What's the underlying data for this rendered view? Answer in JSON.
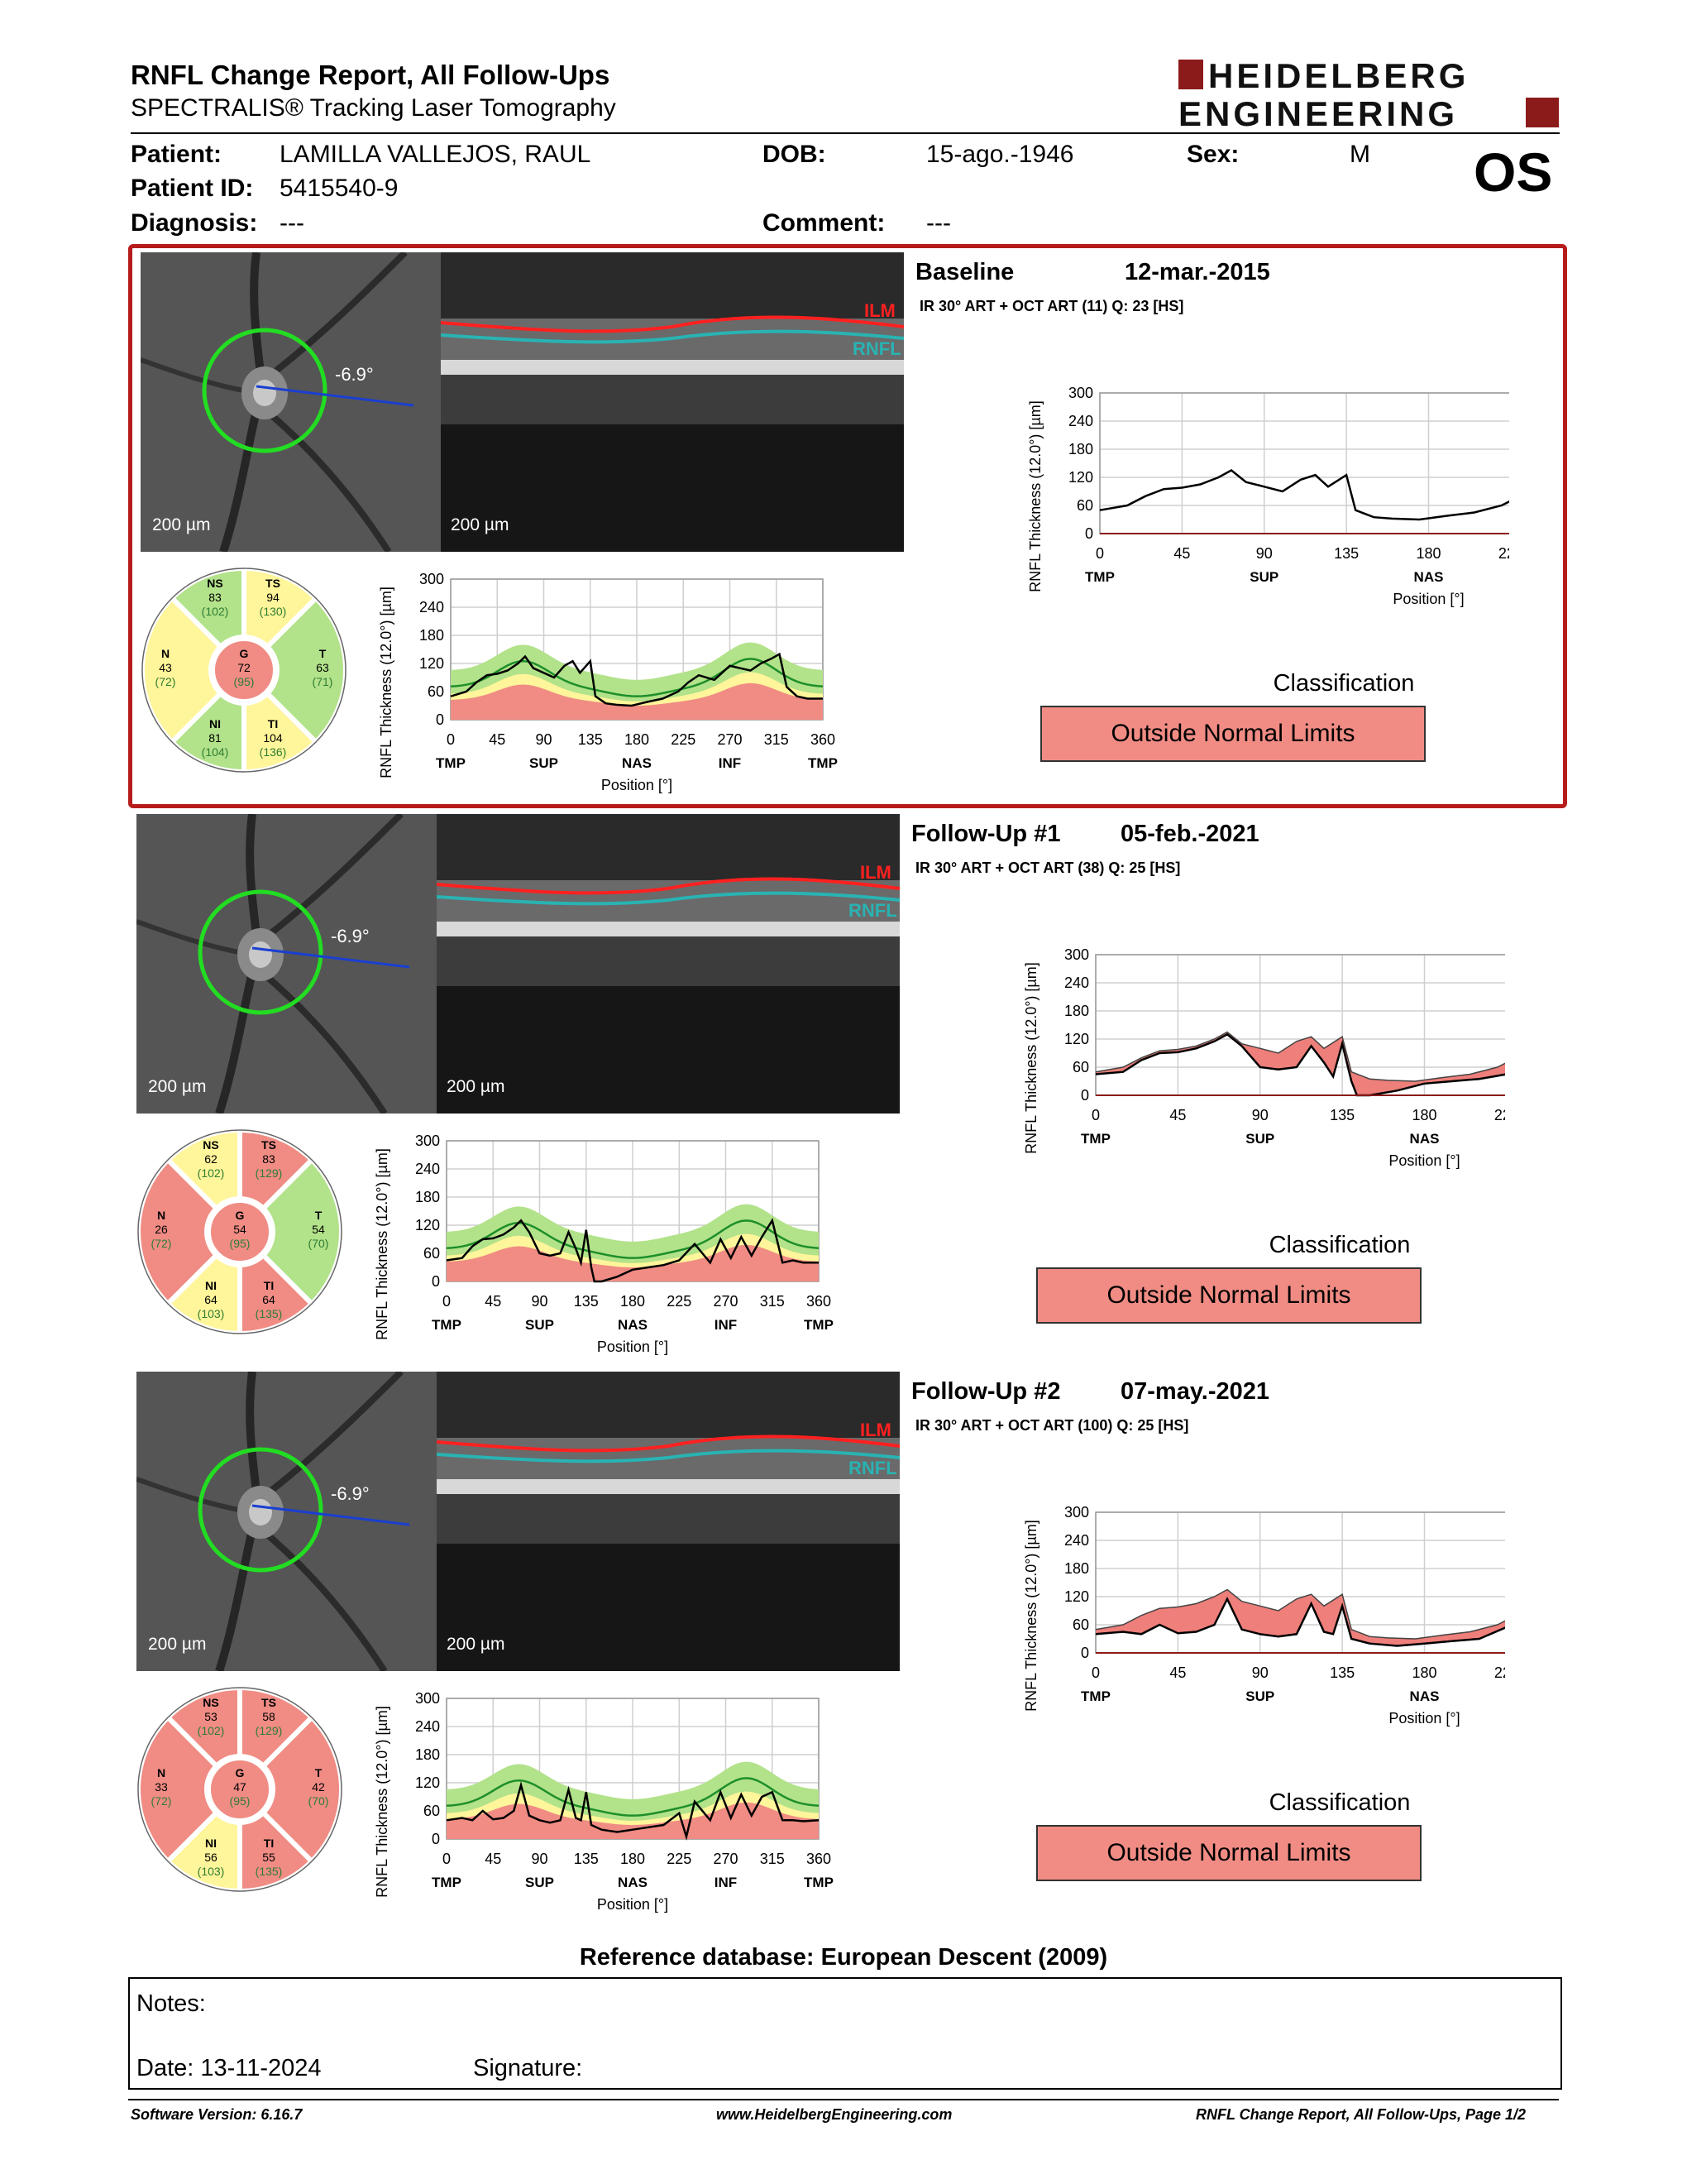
{
  "header": {
    "title": "RNFL Change Report, All Follow-Ups",
    "subtitle": "SPECTRALIS® Tracking Laser Tomography",
    "logo_line1": "HEIDELBERG",
    "logo_line2": "ENGINEERING"
  },
  "patient": {
    "patient_label": "Patient:",
    "patient_value": "LAMILLA VALLEJOS, RAUL",
    "id_label": "Patient ID:",
    "id_value": "5415540-9",
    "diagnosis_label": "Diagnosis:",
    "diagnosis_value": "---",
    "dob_label": "DOB:",
    "dob_value": "15-ago.-1946",
    "comment_label": "Comment:",
    "comment_value": "---",
    "sex_label": "Sex:",
    "sex_value": "M",
    "eye": "OS"
  },
  "visits": [
    {
      "title": "Baseline",
      "date": "12-mar.-2015",
      "acq": "IR 30° ART + OCT ART (11) Q: 23 [HS]",
      "angle": "-6.9°",
      "scale": "200 µm",
      "sectors": {
        "NS": [
          "83",
          "(102)"
        ],
        "TS": [
          "94",
          "(130)"
        ],
        "N": [
          "43",
          "(72)"
        ],
        "G": [
          "72",
          "(95)"
        ],
        "T": [
          "63",
          "(71)"
        ],
        "NI": [
          "81",
          "(104)"
        ],
        "TI": [
          "104",
          "(136)"
        ]
      },
      "sector_colors": {
        "NS": "#b2e28a",
        "TS": "#fff59a",
        "N": "#fff59a",
        "G": "#f08c84",
        "T": "#b2e28a",
        "NI": "#b2e28a",
        "TI": "#fff59a"
      },
      "classification_label": "Classification",
      "classification": "Outside Normal Limits"
    },
    {
      "title": "Follow-Up #1",
      "date": "05-feb.-2021",
      "acq": "IR 30° ART + OCT ART (38) Q: 25 [HS]",
      "angle": "-6.9°",
      "scale": "200 µm",
      "sectors": {
        "NS": [
          "62",
          "(102)"
        ],
        "TS": [
          "83",
          "(129)"
        ],
        "N": [
          "26",
          "(72)"
        ],
        "G": [
          "54",
          "(95)"
        ],
        "T": [
          "54",
          "(70)"
        ],
        "NI": [
          "64",
          "(103)"
        ],
        "TI": [
          "64",
          "(135)"
        ]
      },
      "sector_colors": {
        "NS": "#fff59a",
        "TS": "#f08c84",
        "N": "#f08c84",
        "G": "#f08c84",
        "T": "#b2e28a",
        "NI": "#fff59a",
        "TI": "#f08c84"
      },
      "classification_label": "Classification",
      "classification": "Outside Normal Limits"
    },
    {
      "title": "Follow-Up #2",
      "date": "07-may.-2021",
      "acq": "IR 30° ART + OCT ART (100) Q: 25 [HS]",
      "angle": "-6.9°",
      "scale": "200 µm",
      "sectors": {
        "NS": [
          "53",
          "(102)"
        ],
        "TS": [
          "58",
          "(129)"
        ],
        "N": [
          "33",
          "(72)"
        ],
        "G": [
          "47",
          "(95)"
        ],
        "T": [
          "42",
          "(70)"
        ],
        "NI": [
          "56",
          "(103)"
        ],
        "TI": [
          "55",
          "(135)"
        ]
      },
      "sector_colors": {
        "NS": "#f08c84",
        "TS": "#f08c84",
        "N": "#f08c84",
        "G": "#f08c84",
        "T": "#f08c84",
        "NI": "#fff59a",
        "TI": "#f08c84"
      },
      "classification_label": "Classification",
      "classification": "Outside Normal Limits"
    }
  ],
  "chart_data": [
    {
      "type": "line",
      "title": "Baseline RNFL thickness profile",
      "xlabel": "Position [°]",
      "ylabel": "RNFL Thickness (12.0°) [µm]",
      "xlim": [
        0,
        360
      ],
      "ylim": [
        0,
        300
      ],
      "x_ticks": [
        0,
        45,
        90,
        135,
        180,
        225,
        270,
        315,
        360
      ],
      "y_ticks": [
        0,
        60,
        120,
        180,
        240,
        300
      ],
      "region_labels": [
        "TMP",
        "SUP",
        "NAS",
        "INF",
        "TMP"
      ],
      "series": [
        {
          "name": "Baseline",
          "x": [
            0,
            15,
            25,
            35,
            45,
            55,
            65,
            72,
            80,
            90,
            100,
            110,
            118,
            125,
            135,
            140,
            150,
            160,
            175,
            190,
            205,
            220,
            230,
            240,
            255,
            270,
            280,
            290,
            300,
            310,
            318,
            325,
            335,
            345,
            360
          ],
          "y": [
            50,
            60,
            80,
            95,
            98,
            105,
            120,
            135,
            110,
            100,
            90,
            115,
            125,
            100,
            125,
            50,
            35,
            32,
            30,
            38,
            45,
            60,
            80,
            95,
            85,
            115,
            110,
            105,
            120,
            130,
            140,
            70,
            50,
            45,
            45
          ]
        }
      ]
    },
    {
      "type": "line",
      "title": "Follow-Up #1 RNFL thickness profile",
      "xlabel": "Position [°]",
      "ylabel": "RNFL Thickness (12.0°) [µm]",
      "xlim": [
        0,
        360
      ],
      "ylim": [
        0,
        300
      ],
      "x_ticks": [
        0,
        45,
        90,
        135,
        180,
        225,
        270,
        315,
        360
      ],
      "y_ticks": [
        0,
        60,
        120,
        180,
        240,
        300
      ],
      "region_labels": [
        "TMP",
        "SUP",
        "NAS",
        "INF",
        "TMP"
      ],
      "series": [
        {
          "name": "Baseline",
          "x": [
            0,
            15,
            25,
            35,
            45,
            55,
            65,
            72,
            80,
            90,
            100,
            110,
            118,
            125,
            135,
            140,
            150,
            160,
            175,
            190,
            205,
            220,
            230,
            240,
            255,
            270,
            280,
            290,
            300,
            310,
            318,
            325,
            335,
            345,
            360
          ],
          "y": [
            50,
            60,
            80,
            95,
            98,
            105,
            120,
            135,
            110,
            100,
            90,
            115,
            125,
            100,
            125,
            50,
            35,
            32,
            30,
            38,
            45,
            60,
            80,
            95,
            85,
            115,
            110,
            105,
            120,
            130,
            140,
            70,
            50,
            45,
            45
          ]
        },
        {
          "name": "Follow-Up #1",
          "x": [
            0,
            15,
            25,
            35,
            45,
            55,
            65,
            72,
            80,
            90,
            100,
            110,
            118,
            125,
            130,
            135,
            140,
            143,
            150,
            165,
            180,
            195,
            210,
            225,
            240,
            255,
            265,
            275,
            285,
            295,
            305,
            315,
            325,
            335,
            345,
            360
          ],
          "y": [
            45,
            50,
            75,
            90,
            92,
            100,
            115,
            130,
            105,
            60,
            55,
            60,
            105,
            70,
            40,
            110,
            30,
            0,
            0,
            10,
            25,
            30,
            35,
            45,
            80,
            40,
            90,
            50,
            95,
            55,
            95,
            130,
            40,
            45,
            40,
            40
          ]
        }
      ]
    },
    {
      "type": "line",
      "title": "Follow-Up #2 RNFL thickness profile",
      "xlabel": "Position [°]",
      "ylabel": "RNFL Thickness (12.0°) [µm]",
      "xlim": [
        0,
        360
      ],
      "ylim": [
        0,
        300
      ],
      "x_ticks": [
        0,
        45,
        90,
        135,
        180,
        225,
        270,
        315,
        360
      ],
      "y_ticks": [
        0,
        60,
        120,
        180,
        240,
        300
      ],
      "region_labels": [
        "TMP",
        "SUP",
        "NAS",
        "INF",
        "TMP"
      ],
      "series": [
        {
          "name": "Baseline",
          "x": [
            0,
            15,
            25,
            35,
            45,
            55,
            65,
            72,
            80,
            90,
            100,
            110,
            118,
            125,
            135,
            140,
            150,
            160,
            175,
            190,
            205,
            220,
            230,
            240,
            255,
            270,
            280,
            290,
            300,
            310,
            318,
            325,
            335,
            345,
            360
          ],
          "y": [
            50,
            60,
            80,
            95,
            98,
            105,
            120,
            135,
            110,
            100,
            90,
            115,
            125,
            100,
            125,
            50,
            35,
            32,
            30,
            38,
            45,
            60,
            80,
            95,
            85,
            115,
            110,
            105,
            120,
            130,
            140,
            70,
            50,
            45,
            45
          ]
        },
        {
          "name": "Follow-Up #2",
          "x": [
            0,
            15,
            25,
            35,
            45,
            55,
            65,
            72,
            80,
            90,
            100,
            110,
            118,
            125,
            130,
            135,
            140,
            150,
            165,
            180,
            195,
            210,
            225,
            232,
            240,
            255,
            265,
            275,
            285,
            295,
            305,
            315,
            325,
            335,
            345,
            360
          ],
          "y": [
            40,
            45,
            40,
            60,
            42,
            45,
            60,
            115,
            50,
            40,
            35,
            40,
            105,
            45,
            40,
            100,
            30,
            20,
            15,
            20,
            25,
            30,
            55,
            5,
            80,
            40,
            100,
            45,
            95,
            50,
            90,
            100,
            40,
            40,
            38,
            40
          ]
        }
      ]
    }
  ],
  "footer": {
    "refdb": "Reference database: European Descent (2009)",
    "notes_label": "Notes:",
    "date_label": "Date: 13-11-2024",
    "signature_label": "Signature:",
    "software": "Software Version: 6.16.7",
    "url": "www.HeidelbergEngineering.com",
    "page": "RNFL Change Report, All Follow-Ups, Page 1/2"
  }
}
